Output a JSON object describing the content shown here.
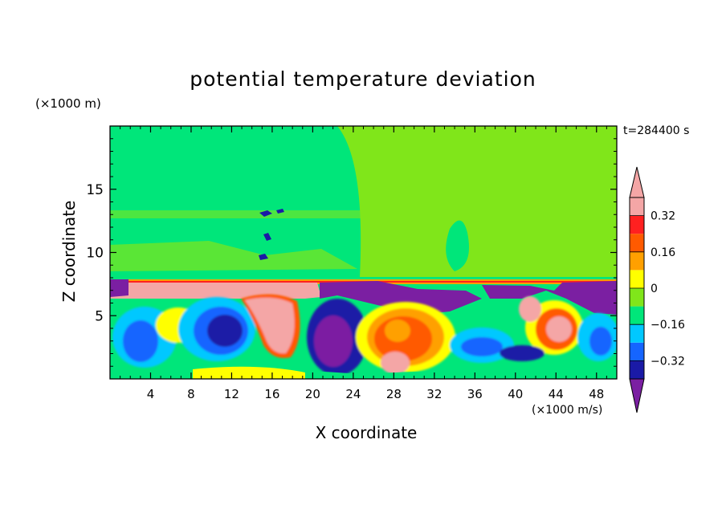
{
  "chart_data": {
    "type": "heatmap",
    "title": "potential temperature deviation",
    "xlabel": "X coordinate",
    "ylabel": "Z coordinate",
    "x_unit": "(×1000 m/s)",
    "y_unit": "(×1000 m)",
    "time_label": "t=284400 s",
    "xlim": [
      0,
      50
    ],
    "ylim": [
      0,
      20
    ],
    "x_ticks": [
      4,
      8,
      12,
      16,
      20,
      24,
      28,
      32,
      36,
      40,
      44,
      48
    ],
    "y_ticks": [
      5,
      10,
      15
    ],
    "colorbar": {
      "levels": [
        -0.4,
        -0.32,
        -0.24,
        -0.16,
        -0.08,
        0,
        0.08,
        0.16,
        0.24,
        0.32,
        0.4
      ],
      "colors": [
        "#7b1fa2",
        "#1a1aa6",
        "#1565ff",
        "#00c8ff",
        "#00e67a",
        "#80e61a",
        "#ffff00",
        "#ffa000",
        "#ff5a00",
        "#ff2020",
        "#f4a6a6",
        "#f4a6a6"
      ],
      "tick_labels": [
        "0.32",
        "0.16",
        "0",
        "−0.16",
        "−0.32"
      ],
      "tick_values": [
        0.32,
        0.16,
        0,
        -0.16,
        -0.32
      ]
    }
  }
}
